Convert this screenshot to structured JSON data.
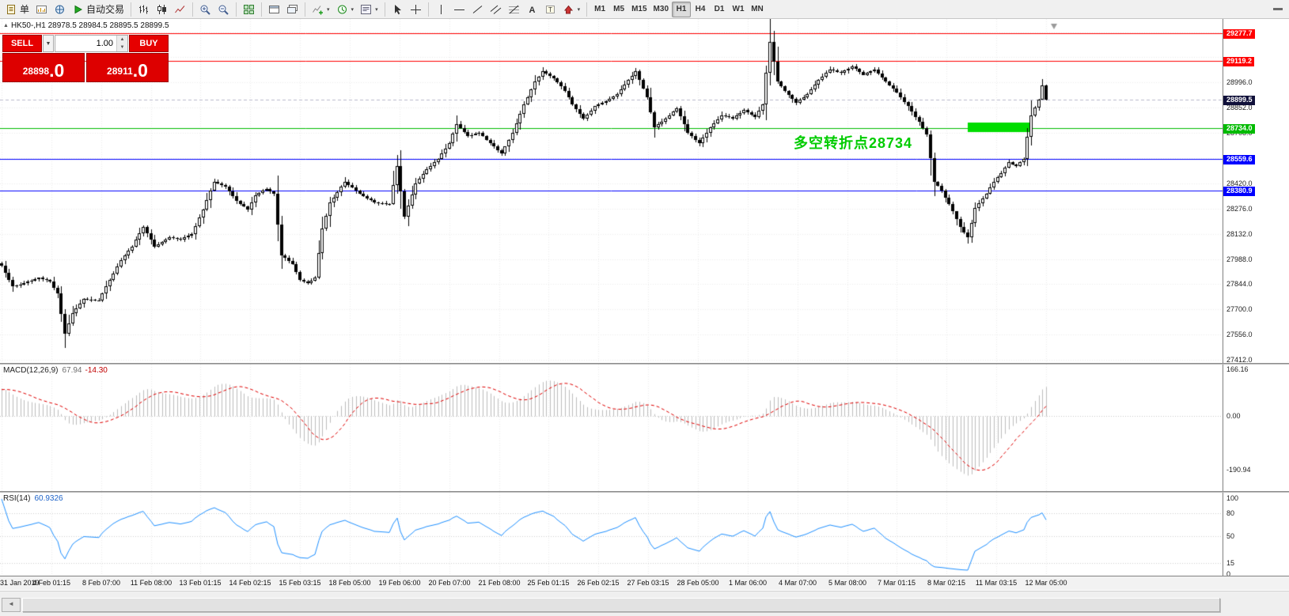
{
  "toolbar": {
    "groups": [
      [
        {
          "name": "new-order-button",
          "icon": "doc",
          "label": "单"
        },
        {
          "name": "charts-button",
          "icon": "chartwin"
        },
        {
          "name": "navigator-button",
          "icon": "profiles"
        },
        {
          "name": "auto-trading-button",
          "icon": "play",
          "label": "自动交易"
        }
      ],
      [
        {
          "name": "bar-chart-button",
          "icon": "bars"
        },
        {
          "name": "candlestick-chart-button",
          "icon": "candle"
        },
        {
          "name": "line-chart-button",
          "icon": "linechart"
        }
      ],
      [
        {
          "name": "zoom-in-button",
          "icon": "zoomin"
        },
        {
          "name": "zoom-out-button",
          "icon": "zoomout"
        }
      ],
      [
        {
          "name": "tile-windows-button",
          "icon": "tile"
        }
      ],
      [
        {
          "name": "arrange-windows-button",
          "icon": "window"
        },
        {
          "name": "cascade-windows-button",
          "icon": "window2"
        }
      ],
      [
        {
          "name": "indicators-button",
          "icon": "indicator",
          "caret": true
        },
        {
          "name": "periods-button",
          "icon": "clock",
          "caret": true
        },
        {
          "name": "templates-button",
          "icon": "template",
          "caret": true
        }
      ],
      [
        {
          "name": "cursor-button",
          "icon": "cursor"
        },
        {
          "name": "crosshair-button",
          "icon": "cross"
        }
      ],
      [
        {
          "name": "vertical-line-button",
          "icon": "vline"
        },
        {
          "name": "horizontal-line-button",
          "icon": "hline"
        },
        {
          "name": "trendline-button",
          "icon": "slash"
        },
        {
          "name": "equidistant-channel-button",
          "icon": "channel"
        },
        {
          "name": "fibonacci-button",
          "icon": "fibo"
        },
        {
          "name": "text-button",
          "icon": "textA"
        },
        {
          "name": "text-label-button",
          "icon": "textT"
        },
        {
          "name": "arrows-button",
          "icon": "arrowshape",
          "caret": true
        }
      ]
    ],
    "timeframes": [
      {
        "label": "M1"
      },
      {
        "label": "M5"
      },
      {
        "label": "M15"
      },
      {
        "label": "M30"
      },
      {
        "label": "H1",
        "active": true
      },
      {
        "label": "H4"
      },
      {
        "label": "D1"
      },
      {
        "label": "W1"
      },
      {
        "label": "MN"
      }
    ]
  },
  "chart": {
    "symbol_line": "HK50-,H1  28978.5 28984.5 28895.5 28899.5",
    "annotation": {
      "text": "多空转折点28734",
      "color": "#00cc00"
    },
    "current_tag_color": "#10103a"
  },
  "one_click": {
    "sell_label": "SELL",
    "buy_label": "BUY",
    "volume": "1.00",
    "sell_price_int": "28898",
    "sell_price_frac": ".0",
    "buy_price_int": "28911",
    "buy_price_frac": ".0"
  },
  "indicators_text": {
    "macd_name": "MACD(12,26,9)",
    "macd_main": "67.94",
    "macd_signal": "-14.30",
    "rsi_name": "RSI(14)",
    "rsi_value": "60.9326"
  },
  "chart_data": {
    "type": "candlestick",
    "symbol": "HK50-",
    "timeframe": "H1",
    "last_bar": {
      "open": 28978.5,
      "high": 28984.5,
      "low": 28895.5,
      "close": 28899.5
    },
    "bid": 28898.0,
    "ask": 28911.0,
    "current_price": 28899.5,
    "grid_step": 144,
    "y_range_visible": [
      27412.0,
      29277.7
    ],
    "main_scale_values": [
      28996.0,
      28852.0,
      28708.0,
      28420.0,
      28276.0,
      28132.0,
      27988.0,
      27844.0,
      27700.0,
      27556.0,
      27412.0
    ],
    "horizontal_levels": [
      {
        "value": 29277.7,
        "color": "#ff0000"
      },
      {
        "value": 29119.2,
        "color": "#ff0000"
      },
      {
        "value": 28734.0,
        "color": "#00bb00"
      },
      {
        "value": 28559.6,
        "color": "#0000ff"
      },
      {
        "value": 28380.9,
        "color": "#0000ff"
      }
    ],
    "highlight_rect": {
      "i1": 259,
      "i2": 276,
      "price_top": 28765,
      "price_bottom": 28714,
      "color": "#00dd00"
    },
    "close_path": [
      [
        0,
        27950
      ],
      [
        3,
        27830
      ],
      [
        6,
        27850
      ],
      [
        10,
        27880
      ],
      [
        13,
        27860
      ],
      [
        15,
        27790
      ],
      [
        17,
        27560
      ],
      [
        19,
        27680
      ],
      [
        22,
        27760
      ],
      [
        26,
        27750
      ],
      [
        29,
        27870
      ],
      [
        32,
        27980
      ],
      [
        35,
        28060
      ],
      [
        38,
        28170
      ],
      [
        41,
        28060
      ],
      [
        45,
        28110
      ],
      [
        48,
        28100
      ],
      [
        51,
        28130
      ],
      [
        54,
        28270
      ],
      [
        57,
        28430
      ],
      [
        60,
        28400
      ],
      [
        63,
        28320
      ],
      [
        66,
        28270
      ],
      [
        68,
        28350
      ],
      [
        71,
        28390
      ],
      [
        73,
        28360
      ],
      [
        75,
        28010
      ],
      [
        78,
        27960
      ],
      [
        80,
        27870
      ],
      [
        82,
        27850
      ],
      [
        84,
        27880
      ],
      [
        86,
        28160
      ],
      [
        88,
        28310
      ],
      [
        92,
        28430
      ],
      [
        96,
        28360
      ],
      [
        100,
        28310
      ],
      [
        104,
        28300
      ],
      [
        106,
        28520
      ],
      [
        108,
        28230
      ],
      [
        111,
        28420
      ],
      [
        114,
        28500
      ],
      [
        117,
        28560
      ],
      [
        120,
        28650
      ],
      [
        122,
        28760
      ],
      [
        125,
        28690
      ],
      [
        128,
        28710
      ],
      [
        131,
        28650
      ],
      [
        134,
        28590
      ],
      [
        137,
        28710
      ],
      [
        140,
        28870
      ],
      [
        143,
        29000
      ],
      [
        145,
        29060
      ],
      [
        148,
        29020
      ],
      [
        151,
        28950
      ],
      [
        153,
        28870
      ],
      [
        156,
        28790
      ],
      [
        159,
        28860
      ],
      [
        162,
        28890
      ],
      [
        165,
        28930
      ],
      [
        168,
        29010
      ],
      [
        170,
        29060
      ],
      [
        173,
        28910
      ],
      [
        175,
        28740
      ],
      [
        178,
        28790
      ],
      [
        181,
        28850
      ],
      [
        184,
        28710
      ],
      [
        187,
        28650
      ],
      [
        190,
        28740
      ],
      [
        193,
        28810
      ],
      [
        196,
        28790
      ],
      [
        199,
        28840
      ],
      [
        202,
        28800
      ],
      [
        204,
        28870
      ],
      [
        206,
        29230
      ],
      [
        208,
        29000
      ],
      [
        210,
        28950
      ],
      [
        213,
        28880
      ],
      [
        216,
        28930
      ],
      [
        219,
        29010
      ],
      [
        222,
        29070
      ],
      [
        225,
        29050
      ],
      [
        228,
        29090
      ],
      [
        231,
        29040
      ],
      [
        234,
        29070
      ],
      [
        237,
        29000
      ],
      [
        240,
        28940
      ],
      [
        243,
        28860
      ],
      [
        246,
        28770
      ],
      [
        248,
        28700
      ],
      [
        250,
        28430
      ],
      [
        252,
        28380
      ],
      [
        255,
        28260
      ],
      [
        257,
        28170
      ],
      [
        259,
        28110
      ],
      [
        261,
        28280
      ],
      [
        264,
        28360
      ],
      [
        266,
        28430
      ],
      [
        268,
        28480
      ],
      [
        270,
        28540
      ],
      [
        272,
        28520
      ],
      [
        274,
        28560
      ],
      [
        276,
        28810
      ],
      [
        278,
        28900
      ],
      [
        279,
        28978
      ],
      [
        280,
        28899.5
      ]
    ],
    "wick_extremes": [
      {
        "i": 17,
        "low": 27478
      },
      {
        "i": 145,
        "high": 29085
      },
      {
        "i": 206,
        "high": 29277.7
      },
      {
        "i": 259,
        "low": 28078
      }
    ],
    "time_labels": [
      "31 Jan 2019",
      "4 Feb 01:15",
      "8 Feb 07:00",
      "11 Feb 08:00",
      "13 Feb 01:15",
      "14 Feb 02:15",
      "15 Feb 03:15",
      "18 Feb 05:00",
      "19 Feb 06:00",
      "20 Feb 07:00",
      "21 Feb 08:00",
      "25 Feb 01:15",
      "26 Feb 02:15",
      "27 Feb 03:15",
      "28 Feb 05:00",
      "1 Mar 06:00",
      "4 Mar 07:00",
      "5 Mar 08:00",
      "7 Mar 01:15",
      "8 Mar 02:15",
      "11 Mar 03:15",
      "12 Mar 05:00"
    ],
    "indicators": {
      "macd": {
        "params": [
          12,
          26,
          9
        ],
        "scale_labels": [
          "166.16",
          "0.00",
          "-190.94"
        ]
      },
      "rsi": {
        "period": 14,
        "scale_labels": [
          "100",
          "80",
          "50",
          "15",
          "0"
        ],
        "levels": [
          80,
          50,
          15
        ]
      }
    }
  }
}
